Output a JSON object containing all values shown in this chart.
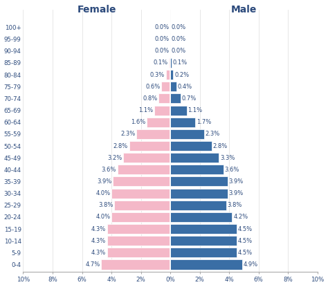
{
  "age_groups": [
    "0-4",
    "5-9",
    "10-14",
    "15-19",
    "20-24",
    "25-29",
    "30-34",
    "35-39",
    "40-44",
    "45-49",
    "50-54",
    "55-59",
    "60-64",
    "65-69",
    "70-74",
    "75-79",
    "80-84",
    "85-89",
    "90-94",
    "95-99",
    "100+"
  ],
  "female": [
    4.7,
    4.3,
    4.3,
    4.3,
    4.0,
    3.8,
    4.0,
    3.9,
    3.6,
    3.2,
    2.8,
    2.3,
    1.6,
    1.1,
    0.8,
    0.6,
    0.3,
    0.1,
    0.0,
    0.0,
    0.0
  ],
  "male": [
    4.9,
    4.5,
    4.5,
    4.5,
    4.2,
    3.8,
    3.9,
    3.9,
    3.6,
    3.3,
    2.8,
    2.3,
    1.7,
    1.1,
    0.7,
    0.4,
    0.2,
    0.1,
    0.0,
    0.0,
    0.0
  ],
  "female_color": "#f4b8c8",
  "male_color": "#3a6ea5",
  "title_female": "Female",
  "title_male": "Male",
  "xlim": 10,
  "background_color": "#ffffff",
  "label_color": "#2c4a7c",
  "bar_height": 0.82,
  "figsize": [
    4.74,
    4.15
  ],
  "dpi": 100
}
